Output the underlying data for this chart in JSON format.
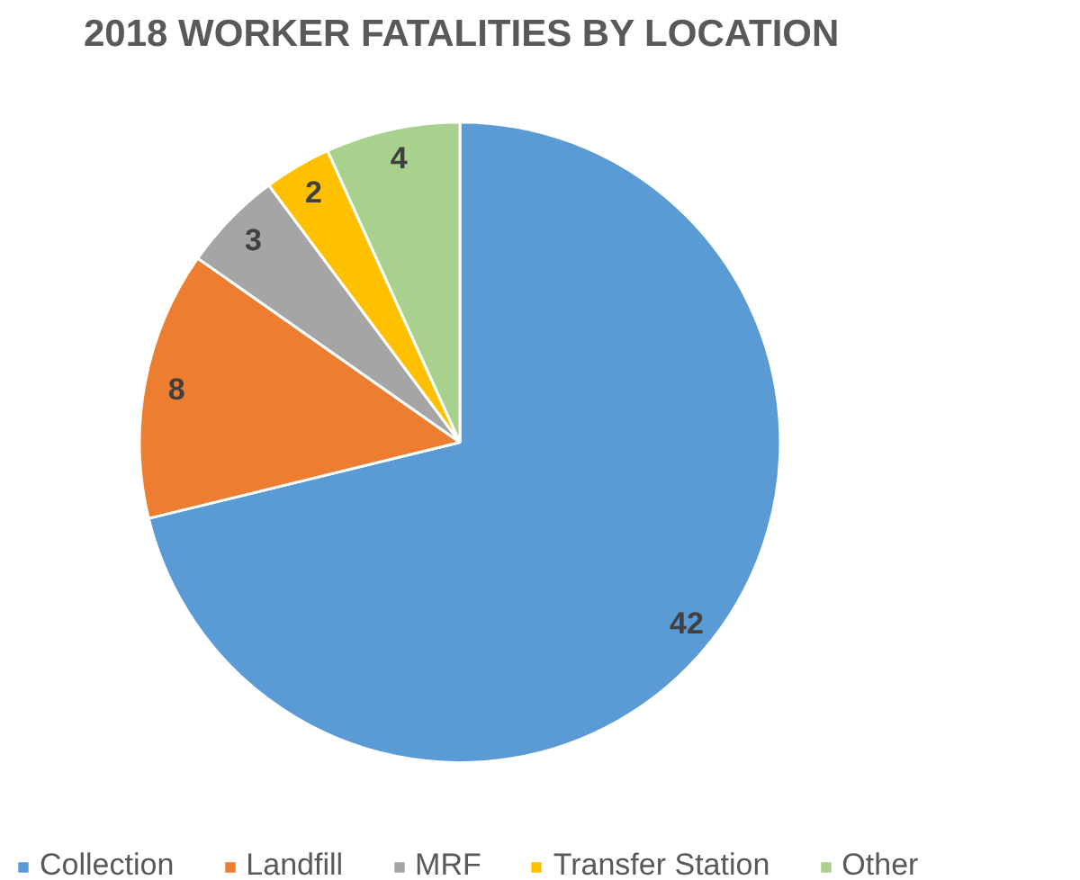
{
  "chart_data": {
    "type": "pie",
    "title": "2018 WORKER FATALITIES BY LOCATION",
    "categories": [
      "Collection",
      "Landfill",
      "MRF",
      "Transfer Station",
      "Other"
    ],
    "values": [
      42,
      8,
      3,
      2,
      4
    ],
    "colors": [
      "#5b9bd5",
      "#ed7d31",
      "#a5a5a5",
      "#ffc000",
      "#a9d18e"
    ],
    "data_labels": true,
    "legend": "bottom"
  }
}
